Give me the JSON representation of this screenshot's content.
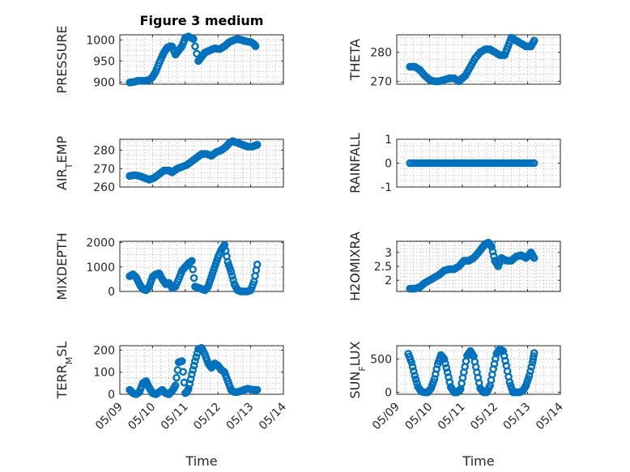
{
  "chart_data": [
    {
      "type": "scatter",
      "title": "Figure 3 medium",
      "ylabel": "PRESSURE",
      "ylim": [
        895,
        1012
      ],
      "yticks": [
        900,
        950,
        1000
      ],
      "ytick_labels": [
        "900",
        "950",
        "1000"
      ],
      "xlim": [
        0,
        5
      ],
      "grid": true,
      "color": "#0072bd",
      "x": [
        0.3,
        0.4,
        0.55,
        0.75,
        0.9,
        1.0,
        1.1,
        1.2,
        1.3,
        1.35,
        1.45,
        1.55,
        1.6,
        1.7,
        1.8,
        1.9,
        2.0,
        2.1,
        2.25,
        2.4,
        2.5,
        2.6,
        2.75,
        2.9,
        3.05,
        3.2,
        3.35,
        3.5,
        3.6,
        3.7,
        3.8,
        3.9,
        4.0,
        4.1,
        4.15
      ],
      "y": [
        899,
        900,
        903,
        903,
        905,
        912,
        925,
        945,
        962,
        970,
        982,
        985,
        984,
        965,
        975,
        985,
        1005,
        1008,
        1002,
        950,
        960,
        970,
        975,
        980,
        978,
        985,
        995,
        1000,
        1002,
        1000,
        998,
        996,
        995,
        990,
        985
      ]
    },
    {
      "type": "scatter",
      "ylabel": "THETA",
      "ylim": [
        269,
        286
      ],
      "yticks": [
        270,
        280
      ],
      "ytick_labels": [
        "270",
        "280"
      ],
      "xlim": [
        0,
        5
      ],
      "grid": true,
      "color": "#0072bd",
      "x": [
        0.4,
        0.55,
        0.7,
        0.85,
        1.0,
        1.15,
        1.3,
        1.45,
        1.6,
        1.75,
        1.9,
        2.0,
        2.1,
        2.25,
        2.4,
        2.55,
        2.7,
        2.85,
        3.0,
        3.15,
        3.3,
        3.4,
        3.5,
        3.65,
        3.8,
        3.95,
        4.1,
        4.2
      ],
      "y": [
        275,
        275,
        274,
        272,
        270.5,
        270,
        270,
        270.5,
        271,
        271,
        270,
        271,
        272,
        275,
        278,
        280,
        281,
        281,
        280,
        279,
        279,
        282,
        285,
        284,
        283,
        282,
        282,
        284
      ]
    },
    {
      "type": "scatter",
      "ylabel": "AIR_TEMP",
      "ylim": [
        260,
        286
      ],
      "yticks": [
        260,
        270,
        280
      ],
      "ytick_labels": [
        "260",
        "270",
        "280"
      ],
      "xlim": [
        0,
        5
      ],
      "grid": true,
      "color": "#0072bd",
      "x": [
        0.3,
        0.45,
        0.6,
        0.75,
        0.9,
        1.05,
        1.2,
        1.35,
        1.5,
        1.6,
        1.75,
        1.9,
        2.05,
        2.2,
        2.35,
        2.5,
        2.65,
        2.8,
        2.95,
        3.1,
        3.25,
        3.35,
        3.45,
        3.6,
        3.75,
        3.9,
        4.05,
        4.2
      ],
      "y": [
        266,
        266.5,
        266,
        265,
        264,
        265,
        267,
        269,
        269,
        268,
        270,
        271,
        272,
        274,
        276,
        278,
        278,
        277,
        279,
        280,
        282,
        284,
        285,
        284,
        283,
        282,
        282,
        283
      ]
    },
    {
      "type": "scatter",
      "ylabel": "RAINFALL",
      "ylim": [
        -1,
        1
      ],
      "yticks": [
        -1,
        0,
        1
      ],
      "ytick_labels": [
        "-1",
        "0",
        "1"
      ],
      "xlim": [
        0,
        5
      ],
      "grid": true,
      "color": "#0072bd",
      "x": [
        0.4,
        0.6,
        0.8,
        1.0,
        1.2,
        1.4,
        1.6,
        1.8,
        2.0,
        2.2,
        2.4,
        2.6,
        2.8,
        3.0,
        3.2,
        3.4,
        3.6,
        3.8,
        4.0,
        4.2
      ],
      "y": [
        0,
        0,
        0,
        0,
        0,
        0,
        0,
        0,
        0,
        0,
        0,
        0,
        0,
        0,
        0,
        0,
        0,
        0,
        0,
        0
      ]
    },
    {
      "type": "scatter",
      "ylabel": "MIXDEPTH",
      "ylim": [
        0,
        2050
      ],
      "yticks": [
        0,
        1000,
        2000
      ],
      "ytick_labels": [
        "0",
        "1000",
        "2000"
      ],
      "xlim": [
        0,
        5
      ],
      "grid": true,
      "color": "#0072bd",
      "x": [
        0.3,
        0.4,
        0.5,
        0.6,
        0.7,
        0.8,
        0.9,
        1.0,
        1.1,
        1.2,
        1.3,
        1.4,
        1.5,
        1.6,
        1.7,
        1.8,
        1.9,
        2.0,
        2.1,
        2.2,
        2.3,
        2.4,
        2.5,
        2.6,
        2.7,
        2.8,
        2.9,
        3.0,
        3.1,
        3.2,
        3.3,
        3.4,
        3.5,
        3.6,
        3.7,
        3.8,
        3.9,
        4.0,
        4.1,
        4.2
      ],
      "y": [
        620,
        700,
        580,
        300,
        100,
        50,
        200,
        600,
        700,
        740,
        500,
        300,
        350,
        150,
        200,
        500,
        850,
        1000,
        1150,
        1250,
        200,
        150,
        100,
        50,
        200,
        600,
        1000,
        1400,
        1700,
        1900,
        1200,
        800,
        300,
        50,
        0,
        0,
        0,
        50,
        400,
        1100
      ]
    },
    {
      "type": "scatter",
      "ylabel": "H2OMIXRA",
      "ylim": [
        1.6,
        3.4
      ],
      "yticks": [
        2,
        2.5,
        3
      ],
      "ytick_labels": [
        "2",
        "2.5",
        "3"
      ],
      "xlim": [
        0,
        5
      ],
      "grid": true,
      "color": "#0072bd",
      "x": [
        0.4,
        0.55,
        0.7,
        0.85,
        1.0,
        1.15,
        1.3,
        1.45,
        1.6,
        1.75,
        1.9,
        2.05,
        2.2,
        2.35,
        2.5,
        2.6,
        2.7,
        2.8,
        2.9,
        3.0,
        3.1,
        3.2,
        3.35,
        3.5,
        3.65,
        3.8,
        3.95,
        4.1,
        4.2
      ],
      "y": [
        1.7,
        1.7,
        1.75,
        1.9,
        2.0,
        2.1,
        2.2,
        2.35,
        2.4,
        2.4,
        2.5,
        2.7,
        2.7,
        2.8,
        3.0,
        3.15,
        3.3,
        3.35,
        3.2,
        2.7,
        2.5,
        2.8,
        2.7,
        2.7,
        2.85,
        2.9,
        2.8,
        3.0,
        2.8
      ]
    },
    {
      "type": "scatter",
      "ylabel": "TERR_MSL",
      "ylim": [
        0,
        220
      ],
      "yticks": [
        0,
        100,
        200
      ],
      "ytick_labels": [
        "0",
        "100",
        "200"
      ],
      "xlim": [
        0,
        5
      ],
      "grid": true,
      "color": "#0072bd",
      "x": [
        0.3,
        0.4,
        0.5,
        0.6,
        0.7,
        0.8,
        0.9,
        1.0,
        1.1,
        1.2,
        1.3,
        1.4,
        1.5,
        1.6,
        1.7,
        1.8,
        1.9,
        2.0,
        2.05,
        2.1,
        2.2,
        2.3,
        2.4,
        2.5,
        2.6,
        2.7,
        2.8,
        2.9,
        3.0,
        3.1,
        3.2,
        3.3,
        3.4,
        3.5,
        3.6,
        3.7,
        3.8,
        3.9,
        4.0,
        4.1,
        4.2
      ],
      "y": [
        20,
        5,
        0,
        10,
        50,
        60,
        30,
        5,
        0,
        10,
        20,
        5,
        0,
        15,
        40,
        145,
        150,
        5,
        10,
        25,
        90,
        150,
        205,
        210,
        180,
        140,
        120,
        140,
        130,
        110,
        100,
        60,
        20,
        10,
        10,
        15,
        20,
        25,
        22,
        20,
        20
      ]
    },
    {
      "type": "scatter",
      "ylabel": "SUN_FLUX",
      "ylim": [
        -30,
        700
      ],
      "yticks": [
        0,
        500
      ],
      "ytick_labels": [
        "0",
        "500"
      ],
      "xlim": [
        0,
        5
      ],
      "grid": true,
      "color": "#0072bd",
      "x": [
        0.35,
        0.45,
        0.55,
        0.65,
        0.75,
        0.85,
        0.95,
        1.05,
        1.15,
        1.25,
        1.35,
        1.45,
        1.55,
        1.65,
        1.75,
        1.85,
        1.95,
        2.05,
        2.15,
        2.25,
        2.35,
        2.45,
        2.55,
        2.65,
        2.75,
        2.85,
        2.95,
        3.05,
        3.15,
        3.25,
        3.35,
        3.45,
        3.55,
        3.65,
        3.75,
        3.85,
        3.95,
        4.05,
        4.15,
        4.2
      ],
      "y": [
        580,
        450,
        250,
        80,
        10,
        0,
        0,
        60,
        200,
        420,
        560,
        500,
        300,
        80,
        0,
        0,
        50,
        300,
        550,
        620,
        540,
        300,
        60,
        0,
        0,
        100,
        350,
        580,
        650,
        620,
        400,
        150,
        0,
        0,
        0,
        20,
        100,
        250,
        450,
        590
      ]
    }
  ],
  "x_axis": {
    "label": "Time",
    "ticks": [
      0,
      1,
      2,
      3,
      4,
      5
    ],
    "tick_labels": [
      "05/09",
      "05/10",
      "05/11",
      "05/12",
      "05/13",
      "05/14"
    ]
  }
}
